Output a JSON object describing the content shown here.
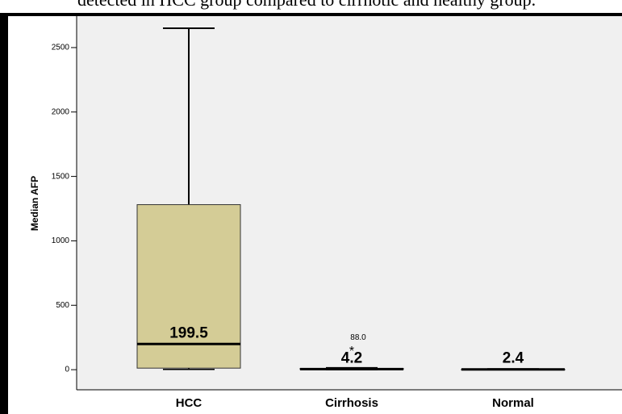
{
  "chart_data": {
    "type": "box",
    "caption": "detected in HCC group compared to cirrhotic and healthy group.",
    "y_label": "Median AFP",
    "categories": [
      "HCC",
      "Cirrhosis",
      "Normal"
    ],
    "boxes": [
      {
        "whislo": 2,
        "q1": 12,
        "med": 199.5,
        "q3": 1281,
        "whishi": 2650,
        "fliers": []
      },
      {
        "whislo": 0.5,
        "q1": 2,
        "med": 4.2,
        "q3": 10,
        "whishi": 14,
        "fliers": [
          160
        ],
        "flier_labels": [
          "88.0"
        ]
      },
      {
        "whislo": 0.5,
        "q1": 1.5,
        "med": 2.4,
        "q3": 3.5,
        "whishi": 5,
        "fliers": []
      }
    ],
    "color": "#d4cc96",
    "ylim": [
      -156,
      2744
    ],
    "yticks": [
      0,
      500,
      1000,
      1500,
      2000,
      2500
    ]
  }
}
